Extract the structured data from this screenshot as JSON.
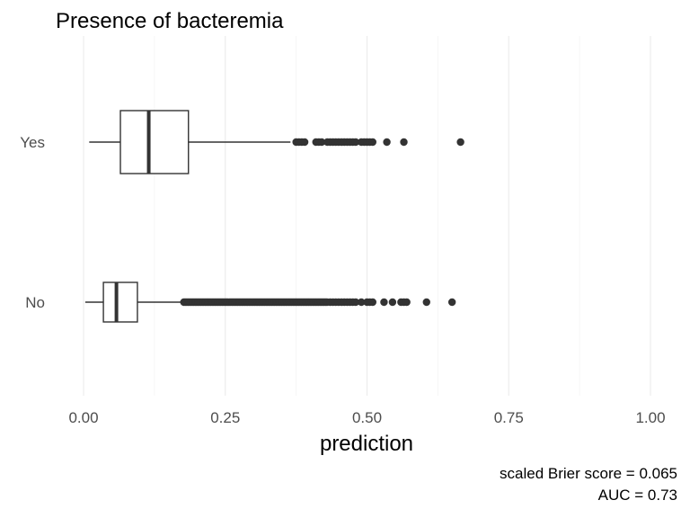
{
  "chart_data": {
    "type": "boxplot",
    "orientation": "horizontal",
    "title": "Presence of bacteremia",
    "xlabel": "prediction",
    "ylabel": "",
    "xlim": [
      -0.03,
      1.03
    ],
    "x_ticks": [
      "0.00",
      "0.25",
      "0.50",
      "0.75",
      "1.00"
    ],
    "x_tick_values": [
      0.0,
      0.25,
      0.5,
      0.75,
      1.0
    ],
    "categories": [
      "Yes",
      "No"
    ],
    "grid": true,
    "boxes": [
      {
        "category": "Yes",
        "whisker_low": 0.01,
        "q1": 0.065,
        "median": 0.115,
        "q3": 0.185,
        "whisker_high": 0.365,
        "outliers": [
          0.375,
          0.38,
          0.385,
          0.39,
          0.41,
          0.415,
          0.42,
          0.43,
          0.435,
          0.44,
          0.445,
          0.45,
          0.455,
          0.46,
          0.465,
          0.47,
          0.475,
          0.48,
          0.49,
          0.495,
          0.5,
          0.505,
          0.51,
          0.535,
          0.565,
          0.665
        ]
      },
      {
        "category": "No",
        "whisker_low": 0.003,
        "q1": 0.035,
        "median": 0.058,
        "q3": 0.095,
        "whisker_high": 0.177,
        "outliers_dense_range": [
          0.177,
          0.43
        ],
        "outliers": [
          0.435,
          0.44,
          0.445,
          0.45,
          0.455,
          0.46,
          0.465,
          0.47,
          0.475,
          0.48,
          0.49,
          0.5,
          0.505,
          0.51,
          0.53,
          0.545,
          0.56,
          0.565,
          0.57,
          0.605,
          0.65
        ]
      }
    ],
    "colors": {
      "box_line": "#333333",
      "point": "#333333",
      "grid": "#ebebeb",
      "tick_text": "#4d4d4d"
    }
  },
  "captions": {
    "brier": "scaled Brier score = 0.065",
    "auc": "AUC = 0.73"
  }
}
